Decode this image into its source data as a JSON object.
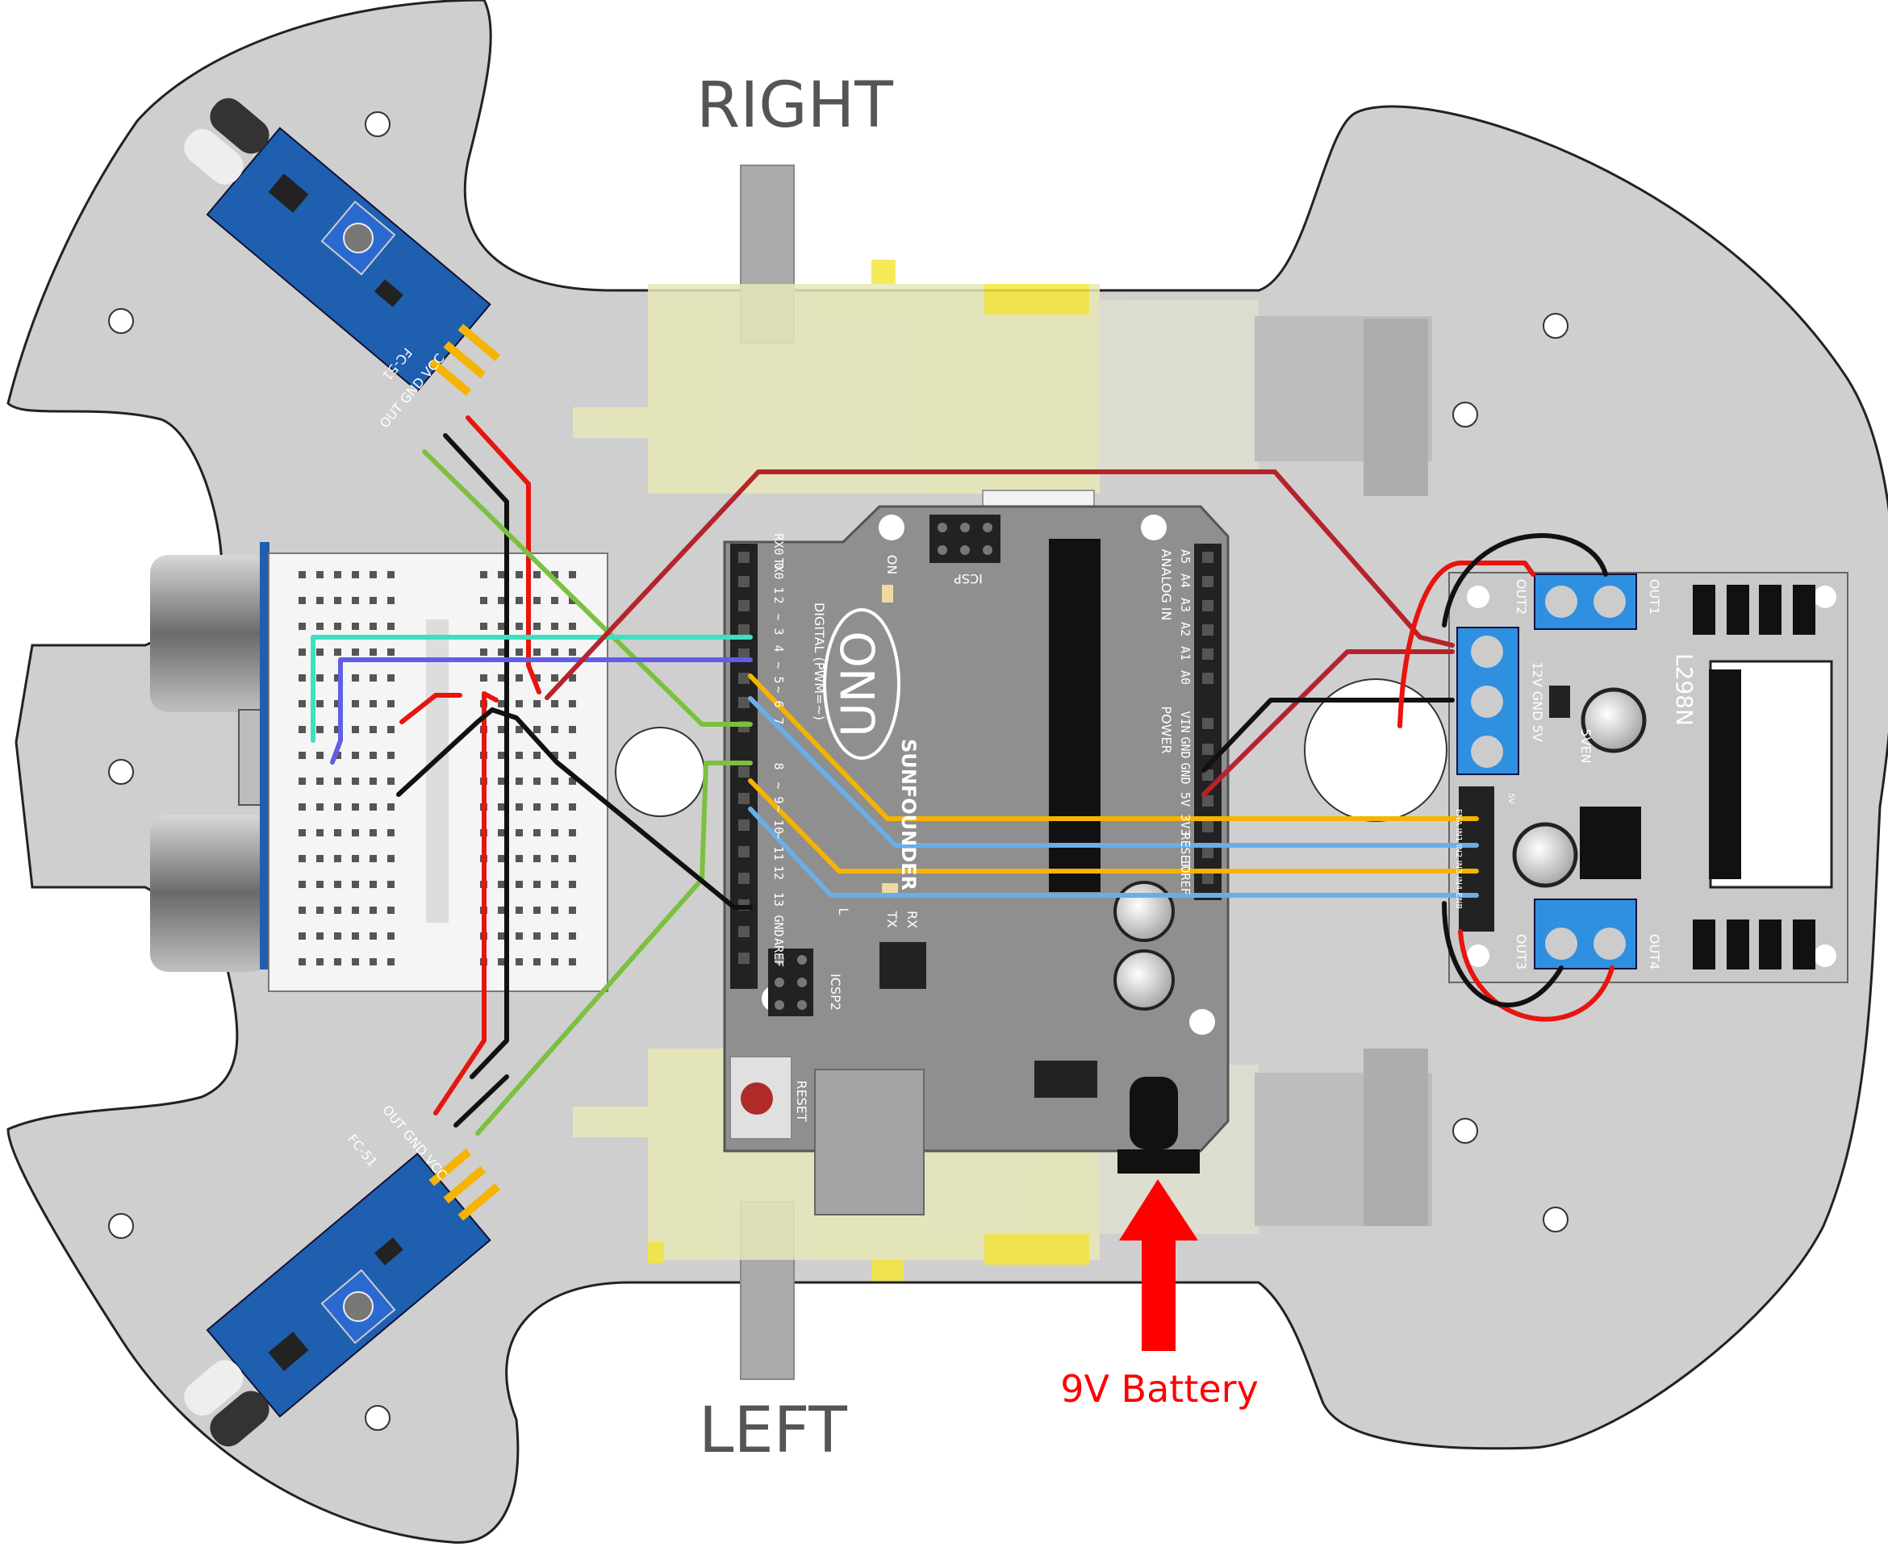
{
  "labels": {
    "right": "RIGHT",
    "left": "LEFT",
    "battery": "9V Battery"
  },
  "arduino": {
    "logo": "UNO",
    "brand": "SUNFOUNDER",
    "icsp_top": "ICSP",
    "icsp_bottom": "ICSP2",
    "reset": "RESET",
    "on": "ON",
    "tx": "TX",
    "rx": "RX",
    "l": "L",
    "digital_label": "DIGITAL (PWM=~)",
    "analog_label": "ANALOG IN",
    "power_label": "POWER",
    "digital_pins_top": [
      "RX0 0",
      "TX0 1",
      "2",
      "~ 3",
      "4",
      "~ 5",
      "~ 6",
      "7"
    ],
    "digital_pins_bottom": [
      "8",
      "~ 9",
      "~ 10",
      "~ 11",
      "12",
      "13",
      "GND",
      "AREF"
    ],
    "analog_pins": [
      "A5",
      "A4",
      "A3",
      "A2",
      "A1",
      "A0"
    ],
    "power_pins": [
      "VIN",
      "GND",
      "GND",
      "5V",
      "3V3",
      "RESET",
      "IOREF"
    ]
  },
  "sensor_top": {
    "model": "FC-51",
    "pins": "OUT GND VCC"
  },
  "sensor_bottom": {
    "model": "FC-51",
    "pins": "OUT GND VCC"
  },
  "driver": {
    "model": "L298N",
    "out1": "OUT1",
    "out2": "OUT2",
    "out3": "OUT3",
    "out4": "OUT4",
    "power_terms": "12V GND 5V",
    "jumper": "5VEN",
    "header": "ENA IN1 IN2 IN3 IN4 ENB",
    "v5": "5V"
  },
  "colors": {
    "chassis": "#cfcfcf",
    "arduino": "#8f8f8f",
    "sensor_board": "#1f5fb0",
    "driver_board": "#c9c9c9",
    "terminal": "#2f8fe0",
    "wire_red": "#e8140e",
    "wire_black": "#111111",
    "wire_yellow": "#f5b400",
    "wire_blue": "#6aaee8",
    "wire_green": "#7cc040",
    "wire_cyan": "#3fe0c0",
    "wire_purple": "#5f5fe6",
    "wire_darkred": "#b5242a",
    "battery_arrow": "#ff0000"
  }
}
